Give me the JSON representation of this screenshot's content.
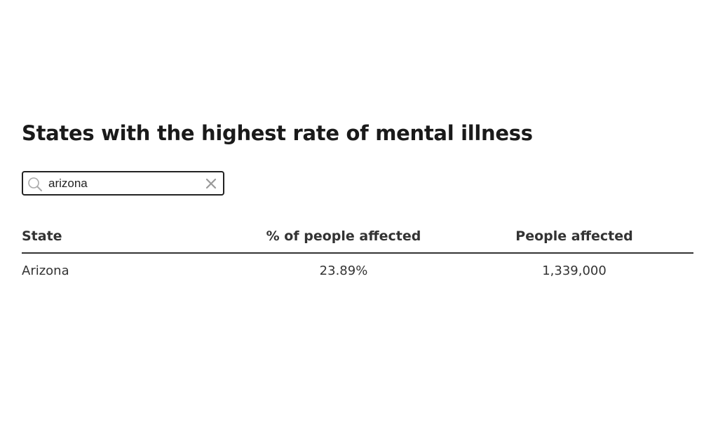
{
  "title": "States with the highest rate of mental illness",
  "search": {
    "value": "arizona",
    "icon": "search-icon",
    "clear_icon": "close-icon"
  },
  "table": {
    "headers": {
      "state": "State",
      "percent": "% of people affected",
      "people": "People affected"
    },
    "rows": [
      {
        "state": "Arizona",
        "percent": "23.89%",
        "people": "1,339,000"
      }
    ]
  }
}
